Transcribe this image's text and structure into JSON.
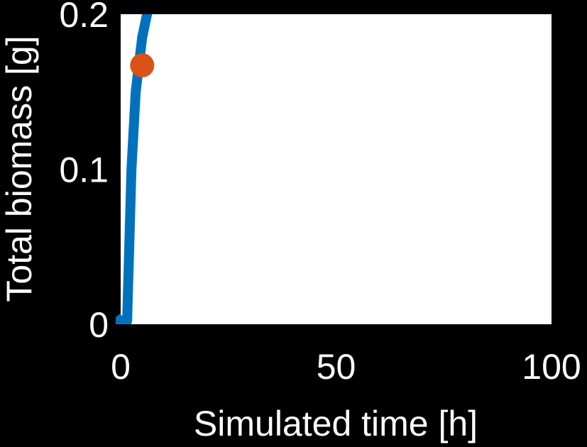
{
  "chart_data": {
    "type": "line",
    "title": "",
    "xlabel": "Simulated time [h]",
    "ylabel": "Total biomass [g]",
    "xlim": [
      0,
      100
    ],
    "ylim": [
      0,
      0.2
    ],
    "xticks": [
      0,
      50,
      100
    ],
    "xtick_labels": [
      "0",
      "50",
      "100"
    ],
    "yticks": [
      0,
      0.1,
      0.2
    ],
    "ytick_labels": [
      "0",
      "0.1",
      "0.2"
    ],
    "grid": false,
    "legend": "none",
    "series": [
      {
        "color": "#0072BD",
        "x": [
          -1,
          0.3,
          1.5,
          2,
          2.5,
          3.5,
          5,
          6.5
        ],
        "y": [
          0.005,
          0.0,
          0.002,
          0.05,
          0.1,
          0.15,
          0.185,
          0.205
        ]
      }
    ],
    "markers": [
      {
        "color": "#D95319",
        "x": 5,
        "y": 0.167
      }
    ]
  }
}
